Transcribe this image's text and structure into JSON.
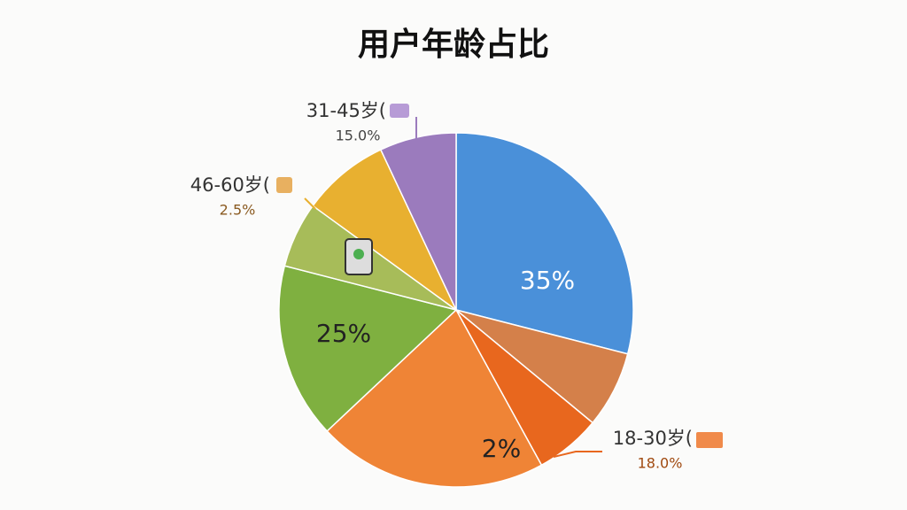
{
  "chart_data": {
    "type": "pie",
    "title": "用户年龄占比",
    "values": [
      29,
      7,
      6,
      21,
      16,
      6,
      8,
      7
    ],
    "colors": [
      "#4a90d9",
      "#d4804a",
      "#e8671e",
      "#ef8436",
      "#7fb040",
      "#a7bc59",
      "#e8b030",
      "#9b7bbd"
    ],
    "inner_labels": [
      "35%",
      "25%",
      "2%"
    ],
    "annotations": [
      {
        "label": "31-45岁(",
        "value_text": "15.0%"
      },
      {
        "label": "46-60岁(",
        "value_text": "2.5%"
      },
      {
        "label": "18-30岁(",
        "value_text": "18.0%"
      }
    ]
  }
}
